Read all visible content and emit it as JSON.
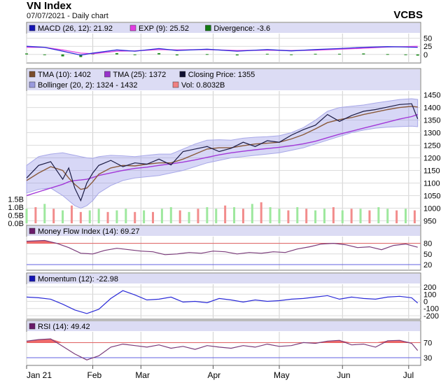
{
  "header": {
    "title": "VN Index",
    "subtitle": "07/07/2021 - Daily chart",
    "brand": "VCBS"
  },
  "chart_data": [
    {
      "type": "line",
      "panel": "macd",
      "legend": [
        {
          "label": "MACD (26, 12): 21.92",
          "color": "#1414b4"
        },
        {
          "label": "EXP (9): 25.52",
          "color": "#e23ce2"
        },
        {
          "label": "Divergence: -3.6",
          "color": "#137a13"
        }
      ],
      "ylim": [
        -20,
        60
      ],
      "yticks": [
        {
          "v": 50,
          "t": "50"
        },
        {
          "v": 25,
          "t": "25"
        },
        {
          "v": 0,
          "t": "0"
        }
      ],
      "series": [
        {
          "name": "MACD (26, 12)",
          "color": "#2b2bd8",
          "x": [
            0,
            6,
            12,
            18,
            22,
            30,
            36,
            44,
            50,
            60,
            70,
            80,
            88,
            96,
            104,
            112,
            120,
            126,
            130
          ],
          "values": [
            25,
            22,
            10,
            -2,
            4,
            14,
            10,
            18,
            12,
            16,
            10,
            15,
            11,
            15,
            18,
            22,
            24,
            23,
            22
          ]
        },
        {
          "name": "EXP (9)",
          "color": "#e24be2",
          "x": [
            0,
            6,
            12,
            18,
            22,
            30,
            36,
            44,
            50,
            60,
            70,
            80,
            88,
            96,
            104,
            112,
            120,
            126,
            130
          ],
          "values": [
            22,
            22,
            14,
            4,
            2,
            10,
            11,
            15,
            14,
            15,
            12,
            13,
            12,
            13,
            16,
            19,
            23,
            24,
            25
          ]
        },
        {
          "name": "Divergence",
          "color": "#1c8a1c",
          "x": [
            0,
            6,
            12,
            18,
            22,
            30,
            36,
            44,
            50,
            60,
            70,
            80,
            88,
            96,
            104,
            112,
            120,
            126,
            130
          ],
          "values": [
            3,
            0,
            -6,
            -8,
            2,
            4,
            -2,
            4,
            -3,
            1,
            -3,
            2,
            -2,
            2,
            2,
            3,
            1,
            -1,
            -3.6
          ]
        }
      ]
    },
    {
      "type": "line",
      "panel": "price",
      "legend": [
        {
          "label": "TMA (10): 1402",
          "color": "#7a4b2a"
        },
        {
          "label": "TMA (25): 1372",
          "color": "#9933cc"
        },
        {
          "label": "Closing Price: 1355",
          "color": "#111133"
        },
        {
          "label": "Bollinger (20, 2): 1324 - 1432",
          "color": "#9999dd"
        },
        {
          "label": "Vol: 0.8032B",
          "color": "#f08080"
        }
      ],
      "ylim": [
        940,
        1460
      ],
      "yticks": [
        {
          "v": 1450,
          "t": "1450"
        },
        {
          "v": 1400,
          "t": "1400"
        },
        {
          "v": 1350,
          "t": "1350"
        },
        {
          "v": 1300,
          "t": "1300"
        },
        {
          "v": 1250,
          "t": "1250"
        },
        {
          "v": 1200,
          "t": "1200"
        },
        {
          "v": 1150,
          "t": "1150"
        },
        {
          "v": 1100,
          "t": "1100"
        },
        {
          "v": 1050,
          "t": "1050"
        },
        {
          "v": 1000,
          "t": "1000"
        },
        {
          "v": 950,
          "t": "950"
        }
      ],
      "vol_ticks": [
        {
          "v": 1.5,
          "t": "1.5B"
        },
        {
          "v": 1.0,
          "t": "1.0B"
        },
        {
          "v": 0.5,
          "t": "0.5B"
        },
        {
          "v": 0,
          "t": "0.0B"
        }
      ],
      "x": [
        0,
        4,
        8,
        12,
        14,
        16,
        18,
        20,
        22,
        24,
        28,
        32,
        36,
        40,
        44,
        48,
        52,
        56,
        60,
        64,
        68,
        72,
        76,
        80,
        84,
        88,
        92,
        96,
        100,
        104,
        108,
        112,
        116,
        120,
        124,
        128,
        130
      ],
      "close": [
        1120,
        1170,
        1185,
        1115,
        1160,
        1080,
        1030,
        1100,
        1140,
        1170,
        1190,
        1165,
        1180,
        1175,
        1195,
        1172,
        1225,
        1235,
        1245,
        1225,
        1238,
        1262,
        1245,
        1268,
        1262,
        1290,
        1312,
        1330,
        1372,
        1345,
        1368,
        1385,
        1392,
        1402,
        1412,
        1415,
        1355
      ],
      "tma10": [
        1110,
        1140,
        1165,
        1150,
        1120,
        1095,
        1075,
        1080,
        1105,
        1135,
        1160,
        1170,
        1168,
        1175,
        1180,
        1180,
        1195,
        1215,
        1235,
        1240,
        1240,
        1248,
        1255,
        1258,
        1262,
        1275,
        1292,
        1315,
        1340,
        1352,
        1360,
        1372,
        1382,
        1392,
        1400,
        1405,
        1402
      ],
      "tma25": [
        1050,
        1065,
        1080,
        1095,
        1105,
        1110,
        1112,
        1115,
        1122,
        1130,
        1140,
        1150,
        1158,
        1163,
        1170,
        1176,
        1183,
        1192,
        1202,
        1212,
        1220,
        1226,
        1232,
        1237,
        1242,
        1248,
        1256,
        1266,
        1280,
        1294,
        1306,
        1318,
        1330,
        1342,
        1354,
        1364,
        1372
      ],
      "bb_upper": [
        1170,
        1205,
        1215,
        1220,
        1215,
        1210,
        1205,
        1200,
        1198,
        1205,
        1210,
        1208,
        1205,
        1210,
        1215,
        1215,
        1235,
        1255,
        1270,
        1272,
        1270,
        1278,
        1282,
        1284,
        1288,
        1300,
        1320,
        1350,
        1385,
        1400,
        1405,
        1410,
        1418,
        1425,
        1432,
        1435,
        1432
      ],
      "bb_lower": [
        1060,
        1075,
        1080,
        1050,
        1030,
        1010,
        1000,
        1010,
        1030,
        1060,
        1090,
        1110,
        1120,
        1125,
        1130,
        1140,
        1150,
        1165,
        1180,
        1190,
        1200,
        1205,
        1210,
        1215,
        1220,
        1230,
        1240,
        1255,
        1270,
        1285,
        1300,
        1310,
        1318,
        1322,
        1324,
        1326,
        1324
      ],
      "volume": {
        "x": [
          0,
          3,
          6,
          9,
          12,
          15,
          18,
          21,
          24,
          27,
          30,
          33,
          36,
          39,
          42,
          45,
          48,
          51,
          54,
          57,
          60,
          63,
          66,
          69,
          72,
          75,
          78,
          81,
          84,
          87,
          90,
          93,
          96,
          99,
          102,
          105,
          108,
          111,
          114,
          117,
          120,
          123,
          126,
          129
        ],
        "values": [
          0.9,
          1.0,
          1.2,
          0.9,
          0.8,
          1.1,
          0.7,
          0.8,
          0.9,
          0.7,
          0.8,
          0.9,
          0.7,
          0.8,
          0.7,
          0.9,
          1.0,
          0.8,
          0.7,
          0.9,
          1.0,
          0.9,
          1.1,
          1.0,
          0.9,
          1.2,
          1.3,
          1.0,
          0.9,
          0.8,
          1.0,
          0.9,
          0.8,
          0.9,
          1.0,
          0.8,
          0.9,
          0.9,
          0.8,
          1.0,
          0.9,
          0.8,
          0.9,
          0.8
        ],
        "up": [
          true,
          false,
          true,
          false,
          true,
          false,
          false,
          true,
          true,
          false,
          true,
          true,
          false,
          true,
          false,
          true,
          true,
          false,
          true,
          false,
          true,
          true,
          false,
          true,
          false,
          true,
          false,
          true,
          true,
          false,
          true,
          false,
          true,
          true,
          false,
          true,
          false,
          true,
          false,
          true,
          true,
          false,
          true,
          false
        ]
      }
    },
    {
      "type": "line",
      "panel": "mfi",
      "legend": [
        {
          "label": "Money Flow Index (14): 69.27",
          "color": "#6a1b6a"
        }
      ],
      "ylim": [
        10,
        95
      ],
      "yticks": [
        {
          "v": 80,
          "t": "80"
        },
        {
          "v": 50,
          "t": "50"
        },
        {
          "v": 20,
          "t": "20"
        }
      ],
      "ref_lines": [
        80,
        20
      ],
      "series": [
        {
          "name": "Money Flow Index (14)",
          "color": "#7a3b7a",
          "x": [
            0,
            6,
            10,
            14,
            18,
            22,
            26,
            30,
            34,
            38,
            42,
            46,
            50,
            54,
            58,
            62,
            66,
            70,
            74,
            78,
            82,
            86,
            90,
            94,
            98,
            102,
            106,
            110,
            114,
            118,
            122,
            126,
            130
          ],
          "values": [
            86,
            88,
            80,
            68,
            52,
            50,
            60,
            66,
            62,
            58,
            56,
            48,
            50,
            54,
            52,
            58,
            56,
            50,
            54,
            52,
            56,
            54,
            64,
            70,
            78,
            80,
            76,
            68,
            70,
            62,
            74,
            78,
            69
          ]
        }
      ]
    },
    {
      "type": "line",
      "panel": "momentum",
      "legend": [
        {
          "label": "Momentum (12): -22.98",
          "color": "#1414b4"
        }
      ],
      "ylim": [
        -220,
        220
      ],
      "yticks": [
        {
          "v": 200,
          "t": "200"
        },
        {
          "v": 100,
          "t": "100"
        },
        {
          "v": 0,
          "t": "0"
        },
        {
          "v": -100,
          "t": "-100"
        },
        {
          "v": -200,
          "t": "-200"
        }
      ],
      "series": [
        {
          "name": "Momentum (12)",
          "color": "#2b2bd8",
          "x": [
            0,
            4,
            8,
            12,
            16,
            20,
            24,
            28,
            32,
            36,
            40,
            44,
            48,
            52,
            56,
            60,
            64,
            68,
            72,
            76,
            80,
            84,
            88,
            92,
            96,
            100,
            104,
            108,
            112,
            116,
            120,
            124,
            128,
            130
          ],
          "values": [
            60,
            50,
            30,
            -40,
            -120,
            -170,
            -110,
            40,
            150,
            90,
            20,
            30,
            60,
            -10,
            0,
            -20,
            40,
            20,
            -10,
            20,
            0,
            10,
            30,
            40,
            60,
            80,
            30,
            60,
            40,
            30,
            60,
            70,
            50,
            -23
          ]
        }
      ]
    },
    {
      "type": "line",
      "panel": "rsi",
      "legend": [
        {
          "label": "RSI (14): 49.42",
          "color": "#6a1b6a"
        }
      ],
      "ylim": [
        15,
        95
      ],
      "yticks": [
        {
          "v": 70,
          "t": "70"
        },
        {
          "v": 30,
          "t": "30"
        }
      ],
      "ref_lines": [
        70,
        30
      ],
      "series": [
        {
          "name": "RSI (14)",
          "color": "#7a3b7a",
          "x": [
            0,
            4,
            8,
            12,
            16,
            20,
            24,
            28,
            32,
            36,
            40,
            44,
            48,
            52,
            56,
            60,
            64,
            68,
            72,
            76,
            80,
            84,
            88,
            92,
            96,
            100,
            104,
            108,
            112,
            116,
            120,
            124,
            128,
            130
          ],
          "values": [
            74,
            78,
            80,
            60,
            40,
            24,
            35,
            58,
            66,
            62,
            58,
            64,
            55,
            60,
            52,
            62,
            58,
            55,
            62,
            58,
            66,
            60,
            62,
            70,
            68,
            74,
            76,
            64,
            66,
            58,
            75,
            76,
            68,
            49
          ]
        }
      ]
    }
  ],
  "x_axis": {
    "range": [
      0,
      131
    ],
    "ticks": [
      {
        "x": 0,
        "label": "Jan 21"
      },
      {
        "x": 22,
        "label": "Feb"
      },
      {
        "x": 38,
        "label": "Mar"
      },
      {
        "x": 62,
        "label": "Apr"
      },
      {
        "x": 84,
        "label": "May"
      },
      {
        "x": 105,
        "label": "Jun"
      },
      {
        "x": 127,
        "label": "Jul"
      }
    ]
  }
}
